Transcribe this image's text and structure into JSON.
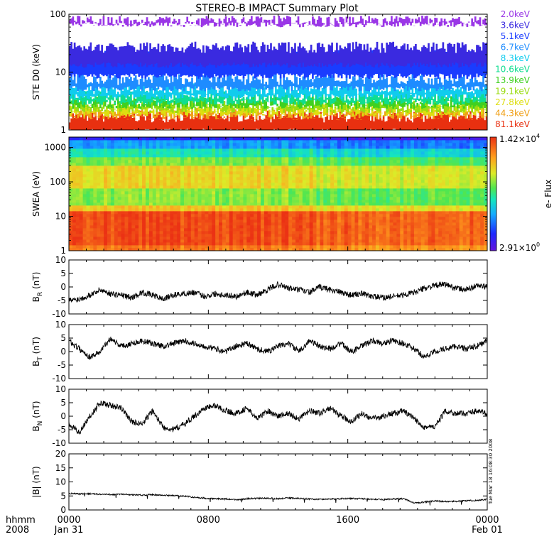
{
  "title": "STEREO-B IMPACT Summary Plot",
  "stamp": "Tue Mar 18 16:08:30 2008",
  "time_axis": {
    "row_label": "hhmm",
    "year_label": "2008",
    "ticks": [
      {
        "hhmm": "0000",
        "date": "Jan 31",
        "hours": 0
      },
      {
        "hhmm": "0800",
        "date": "",
        "hours": 8
      },
      {
        "hhmm": "1600",
        "date": "",
        "hours": 16
      },
      {
        "hhmm": "0000",
        "date": "Feb 01",
        "hours": 24
      }
    ],
    "range_hours": [
      0,
      24
    ]
  },
  "chart_data": [
    {
      "type": "line",
      "id": "ste",
      "ylabel": "STE D0 (keV)",
      "yscale": "log",
      "ylim": [
        1,
        100
      ],
      "yticks": [
        "1",
        "10",
        "100"
      ],
      "legend_placement": "right",
      "series": [
        {
          "name": "2.0keV",
          "color": "#9a36e6",
          "level": [
            70,
            100
          ]
        },
        {
          "name": "3.6keV",
          "color": "#3a2ae0",
          "level": [
            14,
            28
          ]
        },
        {
          "name": "5.1keV",
          "color": "#1a3cff",
          "level": [
            9,
            20
          ]
        },
        {
          "name": "6.7keV",
          "color": "#1e8cff",
          "level": [
            5.5,
            8
          ]
        },
        {
          "name": "8.3keV",
          "color": "#10ccee",
          "level": [
            4,
            5.5
          ]
        },
        {
          "name": "10.6keV",
          "color": "#10dd90",
          "level": [
            3.2,
            4
          ]
        },
        {
          "name": "13.9keV",
          "color": "#40d020",
          "level": [
            2.7,
            3.2
          ]
        },
        {
          "name": "19.1keV",
          "color": "#9adc10",
          "level": [
            2.3,
            2.7
          ]
        },
        {
          "name": "27.8keV",
          "color": "#dede10",
          "level": [
            2.0,
            2.3
          ]
        },
        {
          "name": "44.3keV",
          "color": "#f0a018",
          "level": [
            1.8,
            2.0
          ]
        },
        {
          "name": "81.1keV",
          "color": "#e83010",
          "level": [
            1,
            1.8
          ]
        }
      ]
    },
    {
      "type": "heatmap",
      "id": "swea",
      "ylabel": "SWEA (eV)",
      "yscale": "log",
      "ylim": [
        1,
        2000
      ],
      "yticks": [
        "1",
        "10",
        "100",
        "1000"
      ],
      "colorbar": {
        "label": "e- Flux",
        "max": "1.42×10",
        "max_exp": "4",
        "min": "2.91×10",
        "min_exp": "0"
      }
    },
    {
      "type": "line",
      "id": "br",
      "ylabel": "B",
      "ylabel_sub": "R",
      "yunit": " (nT)",
      "ylim": [
        -10,
        10
      ],
      "yticks": [
        "10",
        "5",
        "0",
        "-5",
        "-10"
      ],
      "series": [
        {
          "values": [
            -5,
            -4.5,
            -3,
            -1,
            -2.5,
            -3,
            -4,
            -2,
            -3,
            -4.5,
            -3,
            -2.5,
            -2,
            -3.5,
            -2.5,
            -3,
            -3.5,
            -2,
            -3,
            -1,
            1,
            -0.5,
            -1,
            -2,
            0,
            -1,
            -2,
            -3,
            -2.5,
            -3.5,
            -4,
            -3.5,
            -3,
            -2,
            -0.5,
            0.5,
            1,
            -0.5,
            -1,
            0.5,
            0
          ]
        }
      ]
    },
    {
      "type": "line",
      "id": "bt",
      "ylabel": "B",
      "ylabel_sub": "T",
      "yunit": " (nT)",
      "ylim": [
        -10,
        10
      ],
      "yticks": [
        "10",
        "5",
        "0",
        "-5",
        "-10"
      ],
      "series": [
        {
          "values": [
            4,
            1,
            -2,
            0,
            5,
            2,
            3,
            4,
            3,
            2,
            3,
            4,
            3,
            2,
            1,
            0,
            2,
            3,
            1,
            0,
            2,
            3,
            0,
            4,
            2,
            1,
            3,
            0,
            2,
            4,
            3,
            4,
            3,
            1,
            -2,
            0,
            1,
            2,
            1,
            2,
            4
          ]
        }
      ]
    },
    {
      "type": "line",
      "id": "bn",
      "ylabel": "B",
      "ylabel_sub": "N",
      "yunit": " (nT)",
      "ylim": [
        -10,
        10
      ],
      "yticks": [
        "10",
        "5",
        "0",
        "-5",
        "-10"
      ],
      "series": [
        {
          "values": [
            -3,
            -6,
            0,
            5,
            4,
            3,
            -2,
            -3,
            2,
            -4,
            -5,
            -3,
            0,
            3,
            4,
            2,
            1,
            3,
            -1,
            2,
            0,
            1,
            -1,
            2,
            1,
            3,
            0,
            -2,
            1,
            -1,
            0,
            1,
            2,
            -1,
            -4,
            -4,
            2,
            1,
            1,
            2,
            1
          ]
        }
      ]
    },
    {
      "type": "line",
      "id": "bmag",
      "ylabel": "|B| (nT)",
      "ylim": [
        0,
        20
      ],
      "yticks": [
        "20",
        "15",
        "10",
        "5",
        "0"
      ],
      "series": [
        {
          "values": [
            5.9,
            5.7,
            5.8,
            5.6,
            5.5,
            5.6,
            5.4,
            5.3,
            5.5,
            5.2,
            5.1,
            5.0,
            4.5,
            4.2,
            4.0,
            3.9,
            3.6,
            4.0,
            4.1,
            4.2,
            4.0,
            4.3,
            4.1,
            3.9,
            3.8,
            3.9,
            4.0,
            4.1,
            4.0,
            3.8,
            3.7,
            3.9,
            4.0,
            2.5,
            2.8,
            3.2,
            3.0,
            3.1,
            3.3,
            3.4,
            3.8
          ]
        }
      ]
    }
  ]
}
